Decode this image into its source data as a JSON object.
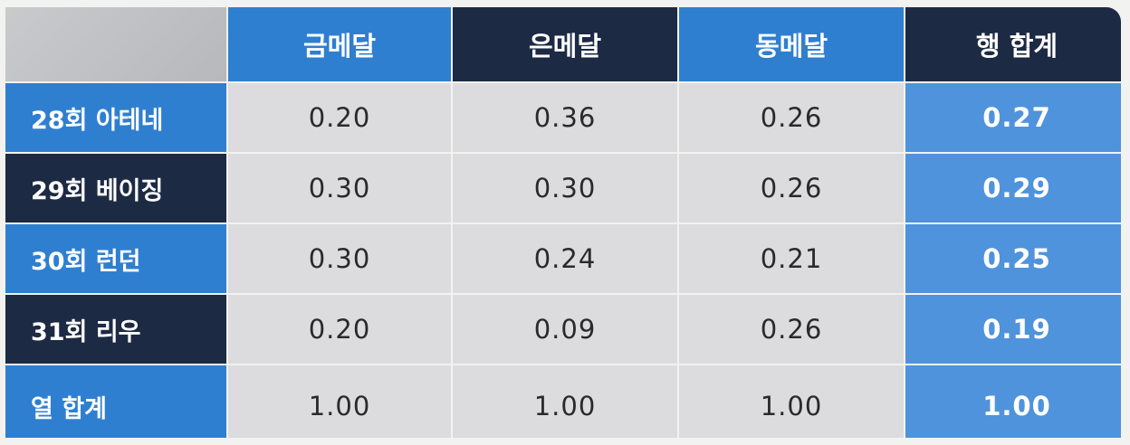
{
  "headers": {
    "corner": "",
    "columns": [
      "금메달",
      "은메달",
      "동메달",
      "행 합계"
    ]
  },
  "rows": [
    {
      "label": "28회 아테네",
      "values": [
        "0.20",
        "0.36",
        "0.26"
      ],
      "total": "0.27"
    },
    {
      "label": "29회 베이징",
      "values": [
        "0.30",
        "0.30",
        "0.26"
      ],
      "total": "0.29"
    },
    {
      "label": "30회 런던",
      "values": [
        "0.30",
        "0.24",
        "0.21"
      ],
      "total": "0.25"
    },
    {
      "label": "31회 리우",
      "values": [
        "0.20",
        "0.09",
        "0.26"
      ],
      "total": "0.19"
    },
    {
      "label": "열 합계",
      "values": [
        "1.00",
        "1.00",
        "1.00"
      ],
      "total": "1.00"
    }
  ],
  "colors": {
    "blue": "#2f7fd1",
    "navy": "#1d2a44",
    "value_bg": "#dcdcde",
    "total_bg": "#4f93dc"
  }
}
